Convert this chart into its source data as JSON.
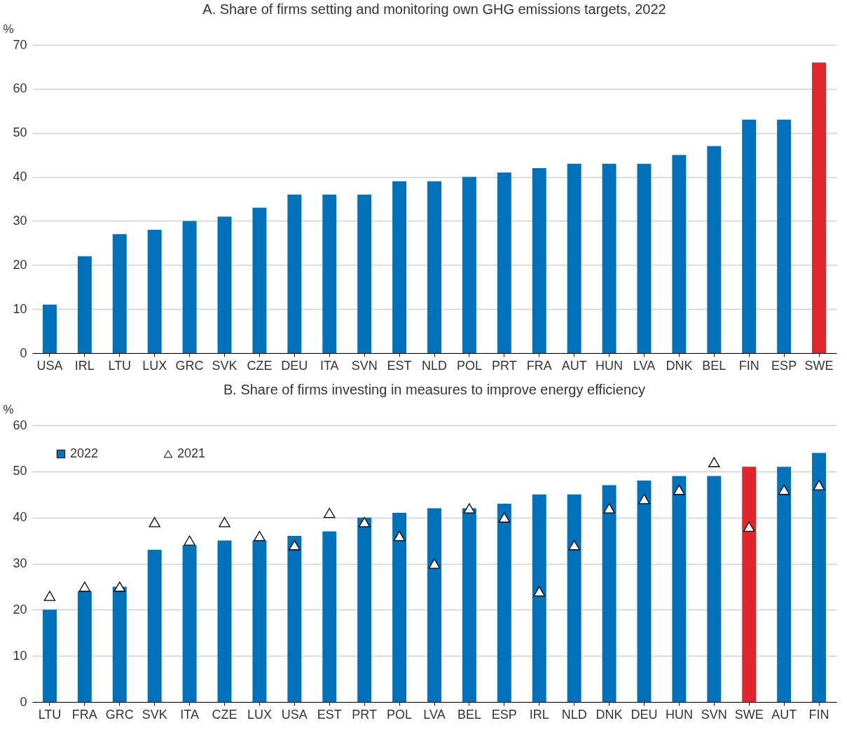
{
  "chart_data": [
    {
      "type": "bar",
      "title": "A. Share of firms setting and monitoring own GHG emissions targets, 2022",
      "ylabel": "%",
      "categories": [
        "USA",
        "IRL",
        "LTU",
        "LUX",
        "GRC",
        "SVK",
        "CZE",
        "DEU",
        "ITA",
        "SVN",
        "EST",
        "NLD",
        "POL",
        "PRT",
        "FRA",
        "AUT",
        "HUN",
        "LVA",
        "DNK",
        "BEL",
        "FIN",
        "ESP",
        "SWE"
      ],
      "values": [
        11,
        22,
        27,
        28,
        30,
        31,
        33,
        36,
        36,
        36,
        39,
        39,
        40,
        41,
        42,
        43,
        43,
        43,
        45,
        47,
        53,
        53,
        66
      ],
      "colors": [
        "#0072bc",
        "#0072bc",
        "#0072bc",
        "#0072bc",
        "#0072bc",
        "#0072bc",
        "#0072bc",
        "#0072bc",
        "#0072bc",
        "#0072bc",
        "#0072bc",
        "#0072bc",
        "#0072bc",
        "#0072bc",
        "#0072bc",
        "#0072bc",
        "#0072bc",
        "#0072bc",
        "#0072bc",
        "#0072bc",
        "#0072bc",
        "#0072bc",
        "#e0262b"
      ],
      "ylim": [
        0,
        70
      ],
      "yticks": [
        0,
        10,
        20,
        30,
        40,
        50,
        60,
        70
      ],
      "grid": "y"
    },
    {
      "type": "bar",
      "title": "B. Share of firms investing in measures to improve energy efficiency",
      "ylabel": "%",
      "categories": [
        "LTU",
        "FRA",
        "GRC",
        "SVK",
        "ITA",
        "CZE",
        "LUX",
        "USA",
        "EST",
        "PRT",
        "POL",
        "LVA",
        "BEL",
        "ESP",
        "IRL",
        "NLD",
        "DNK",
        "DEU",
        "HUN",
        "SVN",
        "SWE",
        "AUT",
        "FIN"
      ],
      "series": [
        {
          "name": "2022",
          "type": "bar",
          "color": "#0072bc",
          "colors": [
            "#0072bc",
            "#0072bc",
            "#0072bc",
            "#0072bc",
            "#0072bc",
            "#0072bc",
            "#0072bc",
            "#0072bc",
            "#0072bc",
            "#0072bc",
            "#0072bc",
            "#0072bc",
            "#0072bc",
            "#0072bc",
            "#0072bc",
            "#0072bc",
            "#0072bc",
            "#0072bc",
            "#0072bc",
            "#0072bc",
            "#e0262b",
            "#0072bc",
            "#0072bc"
          ],
          "values": [
            20,
            24,
            25,
            33,
            34,
            35,
            35,
            36,
            37,
            40,
            41,
            42,
            42,
            43,
            45,
            45,
            47,
            48,
            49,
            49,
            51,
            51,
            54
          ]
        },
        {
          "name": "2021",
          "type": "scatter",
          "marker": "triangle",
          "color": "#ffffff",
          "values": [
            23,
            25,
            25,
            39,
            35,
            39,
            36,
            34,
            41,
            39,
            36,
            30,
            42,
            40,
            24,
            34,
            42,
            44,
            46,
            52,
            38,
            46,
            47
          ]
        }
      ],
      "ylim": [
        0,
        60
      ],
      "yticks": [
        0,
        10,
        20,
        30,
        40,
        50,
        60
      ],
      "grid": "y",
      "legend": "top left"
    }
  ]
}
